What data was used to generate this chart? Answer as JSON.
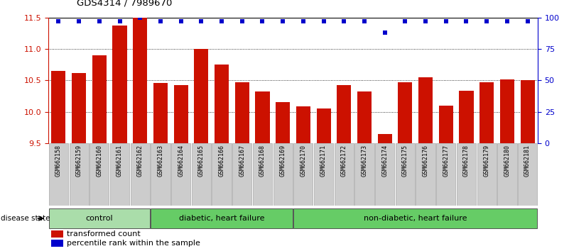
{
  "title": "GDS4314 / 7989670",
  "samples": [
    "GSM662158",
    "GSM662159",
    "GSM662160",
    "GSM662161",
    "GSM662162",
    "GSM662163",
    "GSM662164",
    "GSM662165",
    "GSM662166",
    "GSM662167",
    "GSM662168",
    "GSM662169",
    "GSM662170",
    "GSM662171",
    "GSM662172",
    "GSM662173",
    "GSM662174",
    "GSM662175",
    "GSM662176",
    "GSM662177",
    "GSM662178",
    "GSM662179",
    "GSM662180",
    "GSM662181"
  ],
  "bar_values": [
    10.65,
    10.62,
    10.9,
    11.37,
    11.5,
    10.46,
    10.42,
    11.0,
    10.75,
    10.47,
    10.32,
    10.15,
    10.08,
    10.05,
    10.42,
    10.32,
    9.65,
    10.47,
    10.55,
    10.1,
    10.33,
    10.47,
    10.52,
    10.5
  ],
  "percentile_values": [
    97,
    97,
    97,
    97,
    100,
    97,
    97,
    97,
    97,
    97,
    97,
    97,
    97,
    97,
    97,
    97,
    88,
    97,
    97,
    97,
    97,
    97,
    97,
    97
  ],
  "bar_color": "#cc1100",
  "percentile_color": "#0000cc",
  "bar_bottom": 9.5,
  "ylim_left": [
    9.5,
    11.5
  ],
  "ylim_right": [
    0,
    100
  ],
  "yticks_left": [
    9.5,
    10.0,
    10.5,
    11.0,
    11.5
  ],
  "yticks_right": [
    0,
    25,
    50,
    75,
    100
  ],
  "grid_lines": [
    10.0,
    10.5,
    11.0
  ],
  "background_color": "#ffffff",
  "plot_bg_color": "#ffffff",
  "sample_box_color": "#cccccc",
  "group_labels": [
    "control",
    "diabetic, heart failure",
    "non-diabetic, heart failure"
  ],
  "group_starts": [
    0,
    5,
    12
  ],
  "group_ends": [
    4,
    11,
    23
  ],
  "group_colors": [
    "#aaddaa",
    "#66cc66",
    "#66cc66"
  ],
  "disease_state_label": "disease state",
  "legend_items": [
    {
      "label": "transformed count",
      "color": "#cc1100"
    },
    {
      "label": "percentile rank within the sample",
      "color": "#0000cc"
    }
  ]
}
